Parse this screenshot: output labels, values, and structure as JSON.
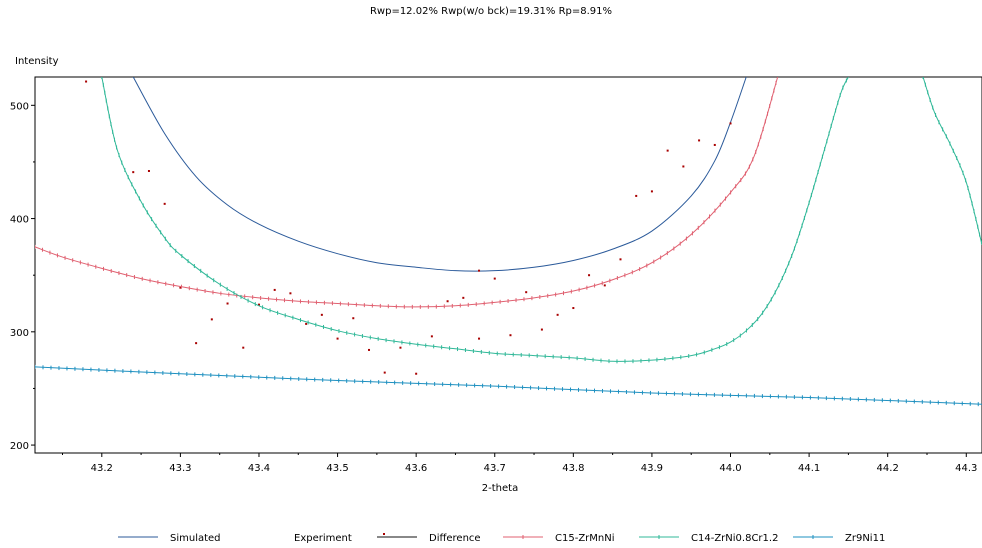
{
  "chart_data": {
    "type": "line",
    "title": "Rwp=12.02%  Rwp(w/o bck)=19.31%  Rp=8.91%",
    "xlabel": "2-theta",
    "ylabel": "Intensity",
    "xlim": [
      43.115,
      44.32
    ],
    "ylim": [
      193,
      525
    ],
    "xticks": [
      43.2,
      43.3,
      43.4,
      43.5,
      43.6,
      43.7,
      43.8,
      43.9,
      44.0,
      44.1,
      44.2,
      44.3
    ],
    "xtick_labels": [
      "43.2",
      "43.3",
      "43.4",
      "43.5",
      "43.6",
      "43.7",
      "43.8",
      "43.9",
      "44.0",
      "44.1",
      "44.2",
      "44.3"
    ],
    "yticks": [
      200,
      300,
      400,
      500
    ],
    "ytick_labels": [
      "200",
      "300",
      "400",
      "500"
    ],
    "grid": false,
    "legend_position": "bottom",
    "series": [
      {
        "name": "Simulated",
        "style": "line",
        "color": "#2b5a9a",
        "x": [
          43.24,
          43.28,
          43.32,
          43.36,
          43.4,
          43.45,
          43.5,
          43.55,
          43.6,
          43.65,
          43.7,
          43.75,
          43.8,
          43.85,
          43.9,
          43.95,
          43.98,
          44.0,
          44.02
        ],
        "y": [
          525,
          475,
          437,
          412,
          395,
          380,
          369,
          361,
          357,
          354,
          354,
          357,
          363,
          373,
          389,
          420,
          451,
          485,
          525
        ]
      },
      {
        "name": "Experiment",
        "style": "dots",
        "color": "#a80000",
        "x": [
          43.18,
          43.24,
          43.26,
          43.28,
          43.3,
          43.32,
          43.34,
          43.36,
          43.38,
          43.4,
          43.42,
          43.44,
          43.46,
          43.48,
          43.5,
          43.52,
          43.54,
          43.56,
          43.58,
          43.6,
          43.62,
          43.64,
          43.66,
          43.68,
          43.68,
          43.7,
          43.72,
          43.74,
          43.76,
          43.78,
          43.8,
          43.82,
          43.84,
          43.86,
          43.88,
          43.9,
          43.92,
          43.94,
          43.96,
          43.98,
          44.0
        ],
        "y": [
          521,
          441,
          442,
          413,
          339,
          290,
          311,
          325,
          286,
          324,
          337,
          334,
          307,
          315,
          294,
          312,
          284,
          264,
          286,
          263,
          296,
          327,
          330,
          354,
          294,
          347,
          297,
          335,
          302,
          315,
          321,
          350,
          341,
          364,
          420,
          424,
          460,
          446,
          469,
          465,
          484
        ]
      },
      {
        "name": "Difference",
        "style": "line",
        "color": "#101010",
        "x": [],
        "y": []
      },
      {
        "name": "C15-ZrMnNi",
        "style": "line-marker",
        "color": "#e06070",
        "x": [
          43.115,
          43.15,
          43.2,
          43.25,
          43.3,
          43.35,
          43.4,
          43.45,
          43.5,
          43.55,
          43.6,
          43.65,
          43.7,
          43.75,
          43.8,
          43.85,
          43.9,
          43.95,
          44.0,
          44.03,
          44.06
        ],
        "y": [
          375,
          366,
          356,
          347,
          340,
          334,
          330,
          327,
          325,
          323,
          322,
          323,
          326,
          330,
          336,
          346,
          361,
          386,
          423,
          455,
          525
        ]
      },
      {
        "name": "C14-ZrNi0.8Cr1.2",
        "style": "line-marker",
        "color": "#30b898",
        "x": [
          43.2,
          43.22,
          43.25,
          43.28,
          43.3,
          43.35,
          43.4,
          43.45,
          43.5,
          43.55,
          43.6,
          43.65,
          43.7,
          43.75,
          43.8,
          43.85,
          43.9,
          43.95,
          43.98,
          44.0,
          44.02,
          44.04,
          44.06,
          44.08,
          44.1,
          44.12,
          44.14,
          44.15
        ],
        "y": [
          525,
          460,
          415,
          383,
          368,
          342,
          323,
          311,
          301,
          294,
          289,
          285,
          281,
          279,
          277,
          274,
          275,
          279,
          285,
          291,
          301,
          316,
          339,
          371,
          414,
          462,
          510,
          525
        ],
        "x2": [
          44.245,
          44.26,
          44.28,
          44.3,
          44.32
        ],
        "y2": [
          525,
          493,
          465,
          432,
          377
        ]
      },
      {
        "name": "Zr9Ni11",
        "style": "line-marker",
        "color": "#1e90c0",
        "x": [
          43.115,
          43.3,
          43.5,
          43.7,
          43.9,
          44.1,
          44.32
        ],
        "y": [
          269,
          263,
          257,
          252,
          246,
          242,
          236
        ]
      }
    ]
  }
}
